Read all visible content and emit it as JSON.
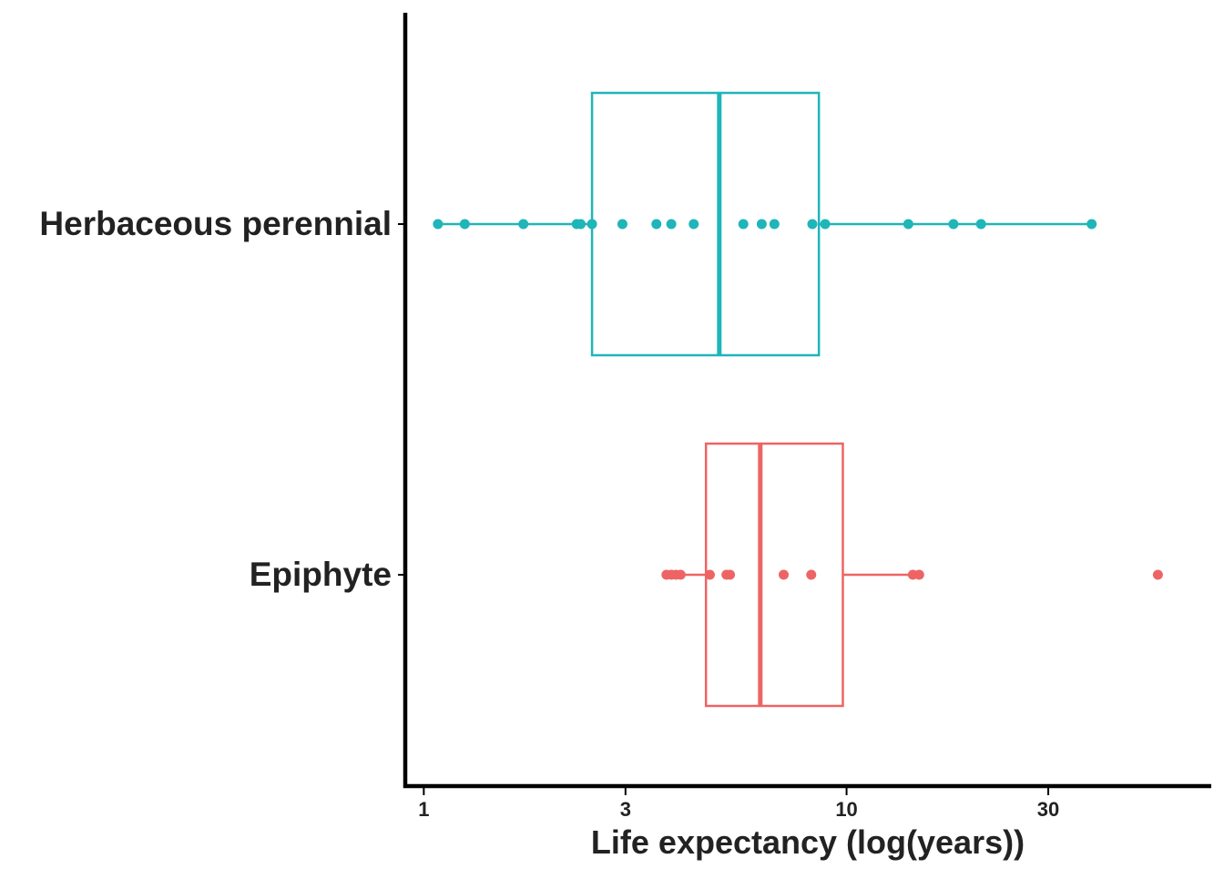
{
  "chart_data": {
    "type": "boxplot",
    "orientation": "horizontal",
    "title": "",
    "xlabel": "Life expectancy (log(years))",
    "ylabel": "",
    "x_scale": "log",
    "xlim": [
      0.95,
      66
    ],
    "x_ticks": [
      1,
      3,
      10,
      30
    ],
    "x_tick_labels": [
      "1",
      "3",
      "10",
      "30"
    ],
    "grid": false,
    "legend": "none",
    "categories": [
      "Herbaceous perennial",
      "Epiphyte"
    ],
    "series": [
      {
        "category": "Herbaceous perennial",
        "color": "#1fb5b9",
        "box": {
          "q1": 2.5,
          "median": 5.0,
          "q3": 8.6
        },
        "whisker": [
          1.08,
          38.0
        ],
        "points": [
          1.08,
          1.25,
          1.72,
          2.3,
          2.35,
          2.5,
          2.95,
          3.55,
          3.85,
          4.35,
          5.7,
          6.3,
          6.75,
          8.3,
          8.9,
          14.0,
          17.9,
          20.8,
          38.0
        ]
      },
      {
        "category": "Epiphyte",
        "color": "#ee6464",
        "box": {
          "q1": 4.65,
          "median": 6.25,
          "q3": 9.8
        },
        "whisker": [
          3.75,
          14.85
        ],
        "points": [
          3.75,
          3.85,
          3.95,
          4.05,
          4.75,
          5.2,
          5.3,
          7.1,
          8.25,
          14.35,
          14.85,
          54.5
        ]
      }
    ]
  }
}
